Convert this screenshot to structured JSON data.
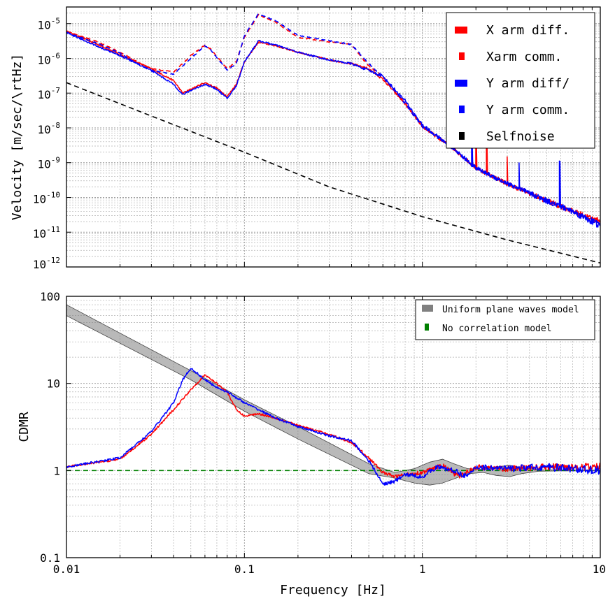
{
  "chart_data": [
    {
      "type": "line",
      "xscale": "log",
      "yscale": "log",
      "xlim": [
        0.01,
        10
      ],
      "ylim": [
        1e-12,
        3e-05
      ],
      "xlabel": "",
      "ylabel": "Velocity [m/sec/\\rtHz]",
      "grid": true,
      "legend_position": "top-right",
      "x_ticks": [
        0.01,
        0.1,
        1,
        10
      ],
      "y_ticks": [
        {
          "value": 1e-05,
          "mant": "10",
          "exp": "-5"
        },
        {
          "value": 1e-06,
          "mant": "10",
          "exp": "-6"
        },
        {
          "value": 1e-07,
          "mant": "10",
          "exp": "-7"
        },
        {
          "value": 1e-08,
          "mant": "10",
          "exp": "-8"
        },
        {
          "value": 1e-09,
          "mant": "10",
          "exp": "-9"
        },
        {
          "value": 1e-10,
          "mant": "10",
          "exp": "-10"
        },
        {
          "value": 1e-11,
          "mant": "10",
          "exp": "-11"
        },
        {
          "value": 1e-12,
          "mant": "10",
          "exp": "-12"
        }
      ],
      "series": [
        {
          "name": "X arm diff.",
          "color": "#ff0000",
          "dash": "solid",
          "noise": 0.18,
          "spikes": [
            [
              2.0,
              2.0
            ],
            [
              2.3,
              1.6
            ],
            [
              3.0,
              1.5
            ]
          ],
          "points": [
            [
              0.01,
              6e-06
            ],
            [
              0.015,
              2.5e-06
            ],
            [
              0.02,
              1.3e-06
            ],
            [
              0.03,
              5e-07
            ],
            [
              0.04,
              2.3e-07
            ],
            [
              0.045,
              1e-07
            ],
            [
              0.05,
              1.3e-07
            ],
            [
              0.06,
              2e-07
            ],
            [
              0.07,
              1.4e-07
            ],
            [
              0.08,
              8e-08
            ],
            [
              0.09,
              1.8e-07
            ],
            [
              0.1,
              8e-07
            ],
            [
              0.12,
              2.9e-06
            ],
            [
              0.15,
              2.3e-06
            ],
            [
              0.2,
              1.5e-06
            ],
            [
              0.3,
              9e-07
            ],
            [
              0.4,
              7e-07
            ],
            [
              0.5,
              5e-07
            ],
            [
              0.6,
              2.5e-07
            ],
            [
              0.8,
              5e-08
            ],
            [
              1,
              1.1e-08
            ],
            [
              1.5,
              2.5e-09
            ],
            [
              2,
              7e-10
            ],
            [
              3,
              2.5e-10
            ],
            [
              5,
              8e-11
            ],
            [
              7,
              4e-11
            ],
            [
              10,
              2e-11
            ]
          ]
        },
        {
          "name": "Xarm comm.",
          "color": "#ff0000",
          "dash": "dashed",
          "noise": 0.12,
          "spikes": [],
          "points": [
            [
              0.01,
              6e-06
            ],
            [
              0.015,
              3e-06
            ],
            [
              0.02,
              1.5e-06
            ],
            [
              0.025,
              8e-07
            ],
            [
              0.03,
              5e-07
            ],
            [
              0.04,
              4e-07
            ],
            [
              0.05,
              1.2e-06
            ],
            [
              0.06,
              2.4e-06
            ],
            [
              0.065,
              1.8e-06
            ],
            [
              0.08,
              5e-07
            ],
            [
              0.09,
              8e-07
            ],
            [
              0.1,
              4e-06
            ],
            [
              0.12,
              1.8e-05
            ],
            [
              0.15,
              1.1e-05
            ],
            [
              0.2,
              4e-06
            ],
            [
              0.3,
              3e-06
            ],
            [
              0.4,
              2.5e-06
            ],
            [
              0.5,
              6e-07
            ],
            [
              0.6,
              3e-07
            ],
            [
              0.8,
              5e-08
            ],
            [
              1,
              1.1e-08
            ],
            [
              1.5,
              2.5e-09
            ],
            [
              2,
              7e-10
            ],
            [
              3,
              2.5e-10
            ],
            [
              5,
              8e-11
            ],
            [
              10,
              2e-11
            ]
          ]
        },
        {
          "name": "Y arm diff/",
          "color": "#0000ff",
          "dash": "solid",
          "noise": 0.2,
          "spikes": [
            [
              1.9,
              1.4
            ],
            [
              3.5,
              1.3
            ],
            [
              5.9,
              5.0
            ]
          ],
          "points": [
            [
              0.01,
              5.5e-06
            ],
            [
              0.015,
              2.2e-06
            ],
            [
              0.02,
              1.2e-06
            ],
            [
              0.03,
              4.5e-07
            ],
            [
              0.04,
              1.8e-07
            ],
            [
              0.045,
              9e-08
            ],
            [
              0.05,
              1.2e-07
            ],
            [
              0.06,
              1.8e-07
            ],
            [
              0.07,
              1.3e-07
            ],
            [
              0.08,
              7e-08
            ],
            [
              0.09,
              1.6e-07
            ],
            [
              0.1,
              8e-07
            ],
            [
              0.12,
              3.2e-06
            ],
            [
              0.15,
              2.4e-06
            ],
            [
              0.2,
              1.5e-06
            ],
            [
              0.3,
              9e-07
            ],
            [
              0.4,
              7e-07
            ],
            [
              0.5,
              4.5e-07
            ],
            [
              0.6,
              3e-07
            ],
            [
              0.8,
              6e-08
            ],
            [
              1,
              1.2e-08
            ],
            [
              1.5,
              2.5e-09
            ],
            [
              2,
              7e-10
            ],
            [
              3,
              2.5e-10
            ],
            [
              5,
              8e-11
            ],
            [
              7,
              4e-11
            ],
            [
              10,
              1.5e-11
            ]
          ]
        },
        {
          "name": "Y arm comm.",
          "color": "#0000ff",
          "dash": "dashed",
          "noise": 0.12,
          "spikes": [],
          "points": [
            [
              0.01,
              5.5e-06
            ],
            [
              0.015,
              2.7e-06
            ],
            [
              0.02,
              1.4e-06
            ],
            [
              0.025,
              7e-07
            ],
            [
              0.03,
              4.5e-07
            ],
            [
              0.04,
              3.5e-07
            ],
            [
              0.05,
              1e-06
            ],
            [
              0.06,
              2.3e-06
            ],
            [
              0.065,
              1.7e-06
            ],
            [
              0.08,
              4.5e-07
            ],
            [
              0.09,
              7e-07
            ],
            [
              0.1,
              4.5e-06
            ],
            [
              0.12,
              1.9e-05
            ],
            [
              0.15,
              1.2e-05
            ],
            [
              0.2,
              4.5e-06
            ],
            [
              0.3,
              3.2e-06
            ],
            [
              0.4,
              2.5e-06
            ],
            [
              0.5,
              7e-07
            ],
            [
              0.6,
              3e-07
            ],
            [
              0.8,
              5e-08
            ],
            [
              1,
              1.1e-08
            ],
            [
              1.5,
              2.5e-09
            ],
            [
              2,
              7e-10
            ],
            [
              3,
              2.5e-10
            ],
            [
              5,
              8e-11
            ],
            [
              10,
              1.8e-11
            ]
          ]
        },
        {
          "name": "Selfnoise",
          "color": "#000000",
          "dash": "dashed",
          "noise": 0,
          "spikes": [],
          "points": [
            [
              0.01,
              2e-07
            ],
            [
              0.03,
              2.2e-08
            ],
            [
              0.1,
              2e-09
            ],
            [
              0.3,
              2e-10
            ],
            [
              1,
              2.8e-11
            ],
            [
              3,
              6e-12
            ],
            [
              10,
              1.3e-12
            ]
          ]
        }
      ]
    },
    {
      "type": "line",
      "xscale": "log",
      "yscale": "log",
      "xlim": [
        0.01,
        10
      ],
      "ylim": [
        0.1,
        100
      ],
      "xlabel": "Frequency [Hz]",
      "ylabel": "CDMR",
      "grid": true,
      "legend_position": "top-right",
      "x_ticks": [
        {
          "value": 0.01,
          "label": "0.01"
        },
        {
          "value": 0.1,
          "label": "0.1"
        },
        {
          "value": 1,
          "label": "1"
        },
        {
          "value": 10,
          "label": "10"
        }
      ],
      "y_ticks": [
        {
          "value": 100,
          "label": "100"
        },
        {
          "value": 10,
          "label": "10"
        },
        {
          "value": 1,
          "label": "1"
        },
        {
          "value": 0.1,
          "label": "0.1"
        }
      ],
      "band": {
        "name": "Uniform plane waves model",
        "color": "#808080",
        "upper": [
          [
            0.01,
            80
          ],
          [
            0.05,
            14
          ],
          [
            0.1,
            6.5
          ],
          [
            0.2,
            3.2
          ],
          [
            0.5,
            1.2
          ],
          [
            0.7,
            0.95
          ],
          [
            0.9,
            1.05
          ],
          [
            1.1,
            1.25
          ],
          [
            1.3,
            1.35
          ],
          [
            1.5,
            1.2
          ],
          [
            1.8,
            1.05
          ],
          [
            2.2,
            1.03
          ],
          [
            2.6,
            1.1
          ],
          [
            3.1,
            1.15
          ],
          [
            3.6,
            1.08
          ],
          [
            4.5,
            1.02
          ],
          [
            6,
            1.02
          ],
          [
            10,
            1.01
          ]
        ],
        "lower": [
          [
            0.01,
            60
          ],
          [
            0.05,
            11
          ],
          [
            0.1,
            4.8
          ],
          [
            0.2,
            2.3
          ],
          [
            0.5,
            0.92
          ],
          [
            0.7,
            0.82
          ],
          [
            0.9,
            0.72
          ],
          [
            1.1,
            0.68
          ],
          [
            1.3,
            0.72
          ],
          [
            1.5,
            0.8
          ],
          [
            1.8,
            0.92
          ],
          [
            2.2,
            0.95
          ],
          [
            2.6,
            0.88
          ],
          [
            3.1,
            0.85
          ],
          [
            3.6,
            0.92
          ],
          [
            4.5,
            0.98
          ],
          [
            6,
            0.99
          ],
          [
            10,
            0.99
          ]
        ]
      },
      "series": [
        {
          "name": "No correlation model",
          "color": "#008000",
          "dash": "dashed",
          "noise": 0,
          "spikes": [],
          "points": [
            [
              0.01,
              1
            ],
            [
              10,
              1
            ]
          ]
        },
        {
          "name": "X arm",
          "legend": false,
          "color": "#ff0000",
          "dash": "solid",
          "noise": 0.09,
          "spikes": [],
          "points": [
            [
              0.01,
              1.1
            ],
            [
              0.02,
              1.35
            ],
            [
              0.03,
              2.6
            ],
            [
              0.04,
              5
            ],
            [
              0.05,
              8.5
            ],
            [
              0.06,
              12.5
            ],
            [
              0.07,
              10
            ],
            [
              0.08,
              8
            ],
            [
              0.09,
              5
            ],
            [
              0.1,
              4.2
            ],
            [
              0.12,
              4.5
            ],
            [
              0.15,
              4
            ],
            [
              0.2,
              3.3
            ],
            [
              0.3,
              2.6
            ],
            [
              0.4,
              2.1
            ],
            [
              0.5,
              1.4
            ],
            [
              0.6,
              0.95
            ],
            [
              0.7,
              0.85
            ],
            [
              0.8,
              0.9
            ],
            [
              1,
              0.95
            ],
            [
              1.3,
              1.15
            ],
            [
              1.6,
              0.85
            ],
            [
              2,
              1.1
            ],
            [
              3,
              1.05
            ],
            [
              5,
              1.1
            ],
            [
              10,
              1.1
            ]
          ]
        },
        {
          "name": "Y arm",
          "legend": false,
          "color": "#0000ff",
          "dash": "solid",
          "noise": 0.1,
          "spikes": [],
          "points": [
            [
              0.01,
              1.1
            ],
            [
              0.02,
              1.4
            ],
            [
              0.03,
              2.8
            ],
            [
              0.04,
              6
            ],
            [
              0.045,
              11
            ],
            [
              0.05,
              15
            ],
            [
              0.06,
              11
            ],
            [
              0.07,
              9
            ],
            [
              0.08,
              8
            ],
            [
              0.1,
              6
            ],
            [
              0.12,
              5
            ],
            [
              0.15,
              4
            ],
            [
              0.2,
              3.2
            ],
            [
              0.3,
              2.5
            ],
            [
              0.4,
              2.2
            ],
            [
              0.5,
              1.3
            ],
            [
              0.6,
              0.7
            ],
            [
              0.7,
              0.75
            ],
            [
              0.8,
              0.9
            ],
            [
              1,
              0.85
            ],
            [
              1.2,
              1.1
            ],
            [
              1.5,
              1.0
            ],
            [
              1.8,
              0.85
            ],
            [
              2,
              1.1
            ],
            [
              3,
              1.05
            ],
            [
              5,
              1.1
            ],
            [
              10,
              1.0
            ]
          ]
        }
      ]
    }
  ]
}
